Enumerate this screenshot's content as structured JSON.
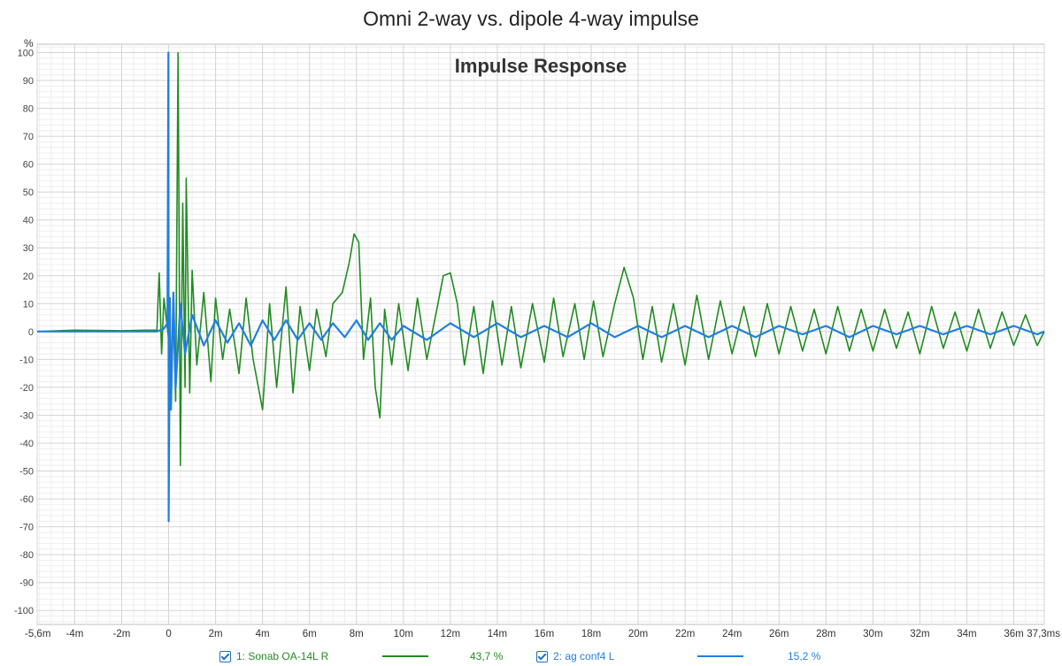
{
  "header": {
    "page_title": "Omni 2-way vs. dipole 4-way impulse",
    "plot_title": "Impulse Response",
    "y_unit": "%"
  },
  "legend": [
    {
      "label": "1: Sonab OA-14L R",
      "percent": "43,7 %",
      "color": "#228b22",
      "checked": true
    },
    {
      "label": "2: ag conf4 L",
      "percent": "15,2 %",
      "color": "#1f7fe0",
      "checked": true
    }
  ],
  "chart_data": {
    "type": "line",
    "title": "Impulse Response",
    "xlabel": "",
    "ylabel": "%",
    "xlim": [
      -5.6,
      37.3
    ],
    "ylim": [
      -105,
      103
    ],
    "grid": true,
    "y_ticks": [
      100,
      90,
      80,
      70,
      60,
      50,
      40,
      30,
      20,
      10,
      0,
      -10,
      -20,
      -30,
      -40,
      -50,
      -60,
      -70,
      -80,
      -90,
      -100
    ],
    "x_tick_values": [
      -5.6,
      -4,
      -2,
      0,
      2,
      4,
      6,
      8,
      10,
      12,
      14,
      16,
      18,
      20,
      22,
      24,
      26,
      28,
      30,
      32,
      34,
      36,
      37.3
    ],
    "x_tick_labels": [
      "-5,6m",
      "-4m",
      "-2m",
      "0",
      "2m",
      "4m",
      "6m",
      "8m",
      "10m",
      "12m",
      "14m",
      "16m",
      "18m",
      "20m",
      "22m",
      "24m",
      "26m",
      "28m",
      "30m",
      "32m",
      "34m",
      "36m",
      "37,3ms"
    ],
    "series": [
      {
        "name": "1: Sonab OA-14L R",
        "color": "#228b22",
        "points": [
          [
            -5.6,
            0
          ],
          [
            -4,
            0.5
          ],
          [
            -2,
            0.3
          ],
          [
            -1.0,
            0.5
          ],
          [
            -0.5,
            0.5
          ],
          [
            -0.4,
            21
          ],
          [
            -0.3,
            -8
          ],
          [
            -0.2,
            12
          ],
          [
            0,
            -3
          ],
          [
            0.1,
            -17
          ],
          [
            0.2,
            6
          ],
          [
            0.3,
            -25
          ],
          [
            0.4,
            100
          ],
          [
            0.5,
            -48
          ],
          [
            0.6,
            46
          ],
          [
            0.7,
            -20
          ],
          [
            0.75,
            55
          ],
          [
            0.9,
            -22
          ],
          [
            1.0,
            22
          ],
          [
            1.2,
            -12
          ],
          [
            1.5,
            14
          ],
          [
            1.8,
            -18
          ],
          [
            2.0,
            12
          ],
          [
            2.3,
            -10
          ],
          [
            2.6,
            8
          ],
          [
            3.0,
            -15
          ],
          [
            3.3,
            12
          ],
          [
            3.6,
            -10
          ],
          [
            4.0,
            -28
          ],
          [
            4.3,
            10
          ],
          [
            4.6,
            -20
          ],
          [
            5.0,
            16
          ],
          [
            5.3,
            -22
          ],
          [
            5.6,
            9
          ],
          [
            6.0,
            -14
          ],
          [
            6.3,
            8
          ],
          [
            6.7,
            -9
          ],
          [
            7.0,
            10
          ],
          [
            7.4,
            14
          ],
          [
            7.7,
            25
          ],
          [
            7.9,
            35
          ],
          [
            8.1,
            32
          ],
          [
            8.3,
            -10
          ],
          [
            8.6,
            12
          ],
          [
            8.8,
            -20
          ],
          [
            9.0,
            -31
          ],
          [
            9.2,
            8
          ],
          [
            9.5,
            -12
          ],
          [
            9.8,
            10
          ],
          [
            10.2,
            -14
          ],
          [
            10.6,
            12
          ],
          [
            11.0,
            -10
          ],
          [
            11.4,
            7
          ],
          [
            11.7,
            20
          ],
          [
            12.0,
            21
          ],
          [
            12.3,
            10
          ],
          [
            12.6,
            -12
          ],
          [
            13.0,
            9
          ],
          [
            13.4,
            -15
          ],
          [
            13.8,
            11
          ],
          [
            14.2,
            -12
          ],
          [
            14.6,
            9
          ],
          [
            15.0,
            -13
          ],
          [
            15.5,
            10
          ],
          [
            16.0,
            -11
          ],
          [
            16.4,
            12
          ],
          [
            16.8,
            -9
          ],
          [
            17.3,
            10
          ],
          [
            17.7,
            -10
          ],
          [
            18.1,
            11
          ],
          [
            18.5,
            -9
          ],
          [
            19.0,
            10
          ],
          [
            19.4,
            23
          ],
          [
            19.8,
            12
          ],
          [
            20.2,
            -10
          ],
          [
            20.6,
            9
          ],
          [
            21.0,
            -11
          ],
          [
            21.5,
            10
          ],
          [
            22.0,
            -12
          ],
          [
            22.5,
            13
          ],
          [
            23.0,
            -10
          ],
          [
            23.5,
            11
          ],
          [
            24.0,
            -8
          ],
          [
            24.5,
            9
          ],
          [
            25.0,
            -9
          ],
          [
            25.5,
            10
          ],
          [
            26.0,
            -8
          ],
          [
            26.5,
            9
          ],
          [
            27.0,
            -7
          ],
          [
            27.5,
            8
          ],
          [
            28.0,
            -8
          ],
          [
            28.5,
            9
          ],
          [
            29.0,
            -7
          ],
          [
            29.5,
            8
          ],
          [
            30.0,
            -7
          ],
          [
            30.5,
            8
          ],
          [
            31.0,
            -6
          ],
          [
            31.5,
            7
          ],
          [
            32.0,
            -8
          ],
          [
            32.5,
            9
          ],
          [
            33.0,
            -6
          ],
          [
            33.5,
            7
          ],
          [
            34.0,
            -7
          ],
          [
            34.5,
            8
          ],
          [
            35.0,
            -6
          ],
          [
            35.5,
            7
          ],
          [
            36.0,
            -5
          ],
          [
            36.5,
            6
          ],
          [
            37.0,
            -5
          ],
          [
            37.3,
            0
          ]
        ]
      },
      {
        "name": "2: ag conf4 L",
        "color": "#1f7fe0",
        "points": [
          [
            -5.6,
            0
          ],
          [
            -4,
            0
          ],
          [
            -2,
            0
          ],
          [
            -0.5,
            0
          ],
          [
            -0.2,
            1
          ],
          [
            -0.05,
            3
          ],
          [
            -0.01,
            100
          ],
          [
            0.0,
            -68
          ],
          [
            0.05,
            12
          ],
          [
            0.1,
            -28
          ],
          [
            0.2,
            14
          ],
          [
            0.3,
            -20
          ],
          [
            0.5,
            10
          ],
          [
            0.7,
            -8
          ],
          [
            1.0,
            6
          ],
          [
            1.5,
            -5
          ],
          [
            2.0,
            4
          ],
          [
            2.5,
            -4
          ],
          [
            3.0,
            3
          ],
          [
            3.5,
            -5
          ],
          [
            4.0,
            4
          ],
          [
            4.5,
            -3
          ],
          [
            5.0,
            4
          ],
          [
            5.5,
            -3
          ],
          [
            6.0,
            3
          ],
          [
            6.5,
            -3
          ],
          [
            7.0,
            3
          ],
          [
            7.5,
            -2
          ],
          [
            8.0,
            4
          ],
          [
            8.5,
            -3
          ],
          [
            9.0,
            3
          ],
          [
            9.5,
            -3
          ],
          [
            10.0,
            2
          ],
          [
            11.0,
            -3
          ],
          [
            12.0,
            3
          ],
          [
            13.0,
            -2
          ],
          [
            14.0,
            3
          ],
          [
            15.0,
            -2
          ],
          [
            16.0,
            2
          ],
          [
            17.0,
            -2
          ],
          [
            18.0,
            3
          ],
          [
            19.0,
            -2
          ],
          [
            20.0,
            2
          ],
          [
            21.0,
            -2
          ],
          [
            22.0,
            2
          ],
          [
            23.0,
            -2
          ],
          [
            24.0,
            2
          ],
          [
            25.0,
            -2
          ],
          [
            26.0,
            2
          ],
          [
            27.0,
            -1
          ],
          [
            28.0,
            2
          ],
          [
            29.0,
            -2
          ],
          [
            30.0,
            2
          ],
          [
            31.0,
            -1
          ],
          [
            32.0,
            2
          ],
          [
            33.0,
            -1
          ],
          [
            34.0,
            2
          ],
          [
            35.0,
            -1
          ],
          [
            36.0,
            2
          ],
          [
            37.0,
            -1
          ],
          [
            37.3,
            0
          ]
        ]
      }
    ]
  }
}
